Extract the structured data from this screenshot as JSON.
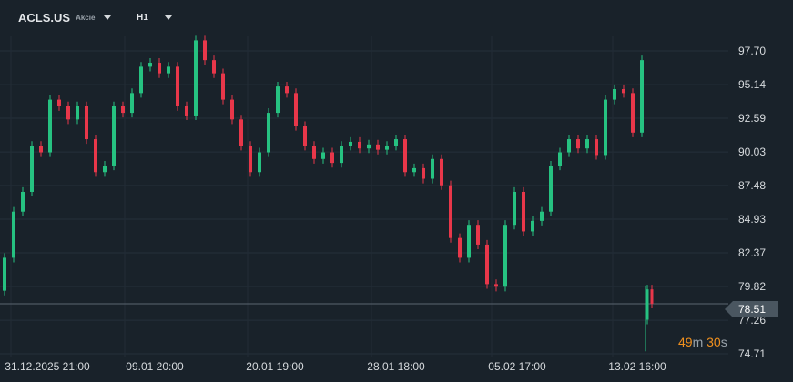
{
  "header": {
    "symbol": "ACLS.US",
    "instrument_type": "Akcie",
    "timeframe": "H1"
  },
  "current_price": "78.51",
  "countdown": {
    "minutes": "49",
    "m_unit": "m",
    "seconds": "30",
    "s_unit": "s"
  },
  "colors": {
    "background": "#19222a",
    "up": "#26c281",
    "down": "#e8374a",
    "countdown": "#f0901e"
  },
  "chart_data": {
    "type": "candlestick",
    "y_ticks": [
      "97.70",
      "95.14",
      "92.59",
      "90.03",
      "87.48",
      "84.93",
      "82.37",
      "79.82",
      "77.26",
      "74.71"
    ],
    "x_ticks": [
      "31.12.2025  21:00",
      "09.01  20:00",
      "20.01  19:00",
      "28.01  18:00",
      "05.02  17:00",
      "13.02  16:00"
    ],
    "ylim": [
      74.71,
      97.7
    ],
    "grid": true,
    "segments": [
      {
        "open": 79.5,
        "closes": [
          82,
          85.5,
          87,
          90.5,
          90,
          94,
          93.5,
          92.5,
          93.5,
          91,
          88.5,
          89,
          93.5,
          93,
          94.5,
          96.5,
          96.8,
          96,
          96.5,
          93.5,
          92.8,
          98.5,
          97,
          96,
          94,
          92.5,
          90.5,
          88.5,
          90,
          93,
          95,
          94.5,
          92,
          90.5,
          89.5,
          90,
          89.2,
          90.5,
          90.8,
          90.3,
          90.6,
          90.2,
          90.5,
          91,
          88.5,
          88.8,
          88,
          89.5,
          87.5,
          83.5,
          82,
          84.5,
          83,
          80,
          79.8,
          84.5,
          87,
          84,
          84.8,
          85.5,
          89,
          90,
          91,
          90.3,
          91,
          89.8,
          94,
          94.8,
          94.5,
          91.5,
          97
        ]
      },
      {
        "open": 77.3,
        "closes": [
          79.6,
          78.51
        ]
      }
    ]
  }
}
